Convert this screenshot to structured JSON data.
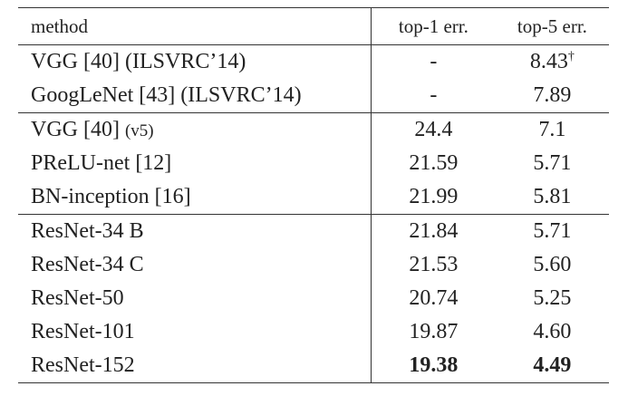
{
  "table": {
    "header": [
      "method",
      "top-1 err.",
      "top-5 err."
    ],
    "groups": [
      [
        {
          "method": "VGG [40] (ILSVRC’14)",
          "top1": "-",
          "top5": "8.43",
          "top5_mark": "†"
        },
        {
          "method": "GoogLeNet [43] (ILSVRC’14)",
          "top1": "-",
          "top5": "7.89"
        }
      ],
      [
        {
          "method": "VGG [40]",
          "method_note": "(v5)",
          "top1": "24.4",
          "top5": "7.1"
        },
        {
          "method": "PReLU-net [12]",
          "top1": "21.59",
          "top5": "5.71"
        },
        {
          "method": "BN-inception [16]",
          "top1": "21.99",
          "top5": "5.81"
        }
      ],
      [
        {
          "method": "ResNet-34 B",
          "top1": "21.84",
          "top5": "5.71"
        },
        {
          "method": "ResNet-34 C",
          "top1": "21.53",
          "top5": "5.60"
        },
        {
          "method": "ResNet-50",
          "top1": "20.74",
          "top5": "5.25"
        },
        {
          "method": "ResNet-101",
          "top1": "19.87",
          "top5": "4.60"
        },
        {
          "method": "ResNet-152",
          "top1": "19.38",
          "top5": "4.49",
          "bold": true
        }
      ]
    ]
  }
}
